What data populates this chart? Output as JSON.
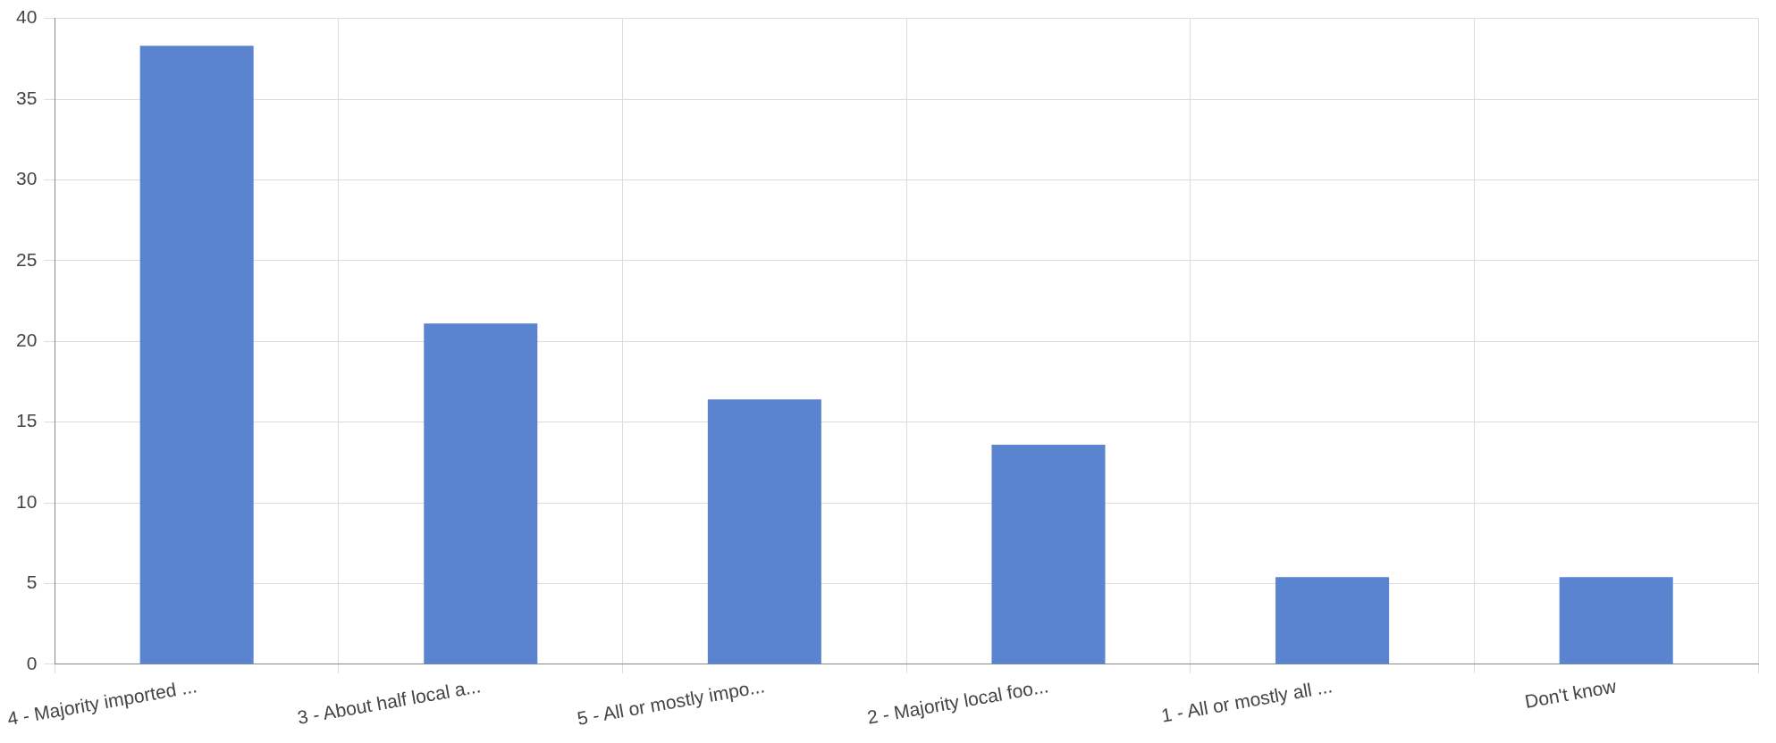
{
  "chart_data": {
    "type": "bar",
    "categories": [
      "4 - Majority imported ...",
      "3 - About half local a...",
      "5 - All or mostly impo...",
      "2 - Majority local foo...",
      "1 - All or mostly all ...",
      "Don't know"
    ],
    "values": [
      38.3,
      21.1,
      16.4,
      13.6,
      5.4,
      5.4
    ],
    "color": "#5b84d0",
    "ylim": [
      0,
      40
    ],
    "yticks": [
      0,
      5,
      10,
      15,
      20,
      25,
      30,
      35,
      40
    ],
    "grid": true,
    "legend": false
  }
}
